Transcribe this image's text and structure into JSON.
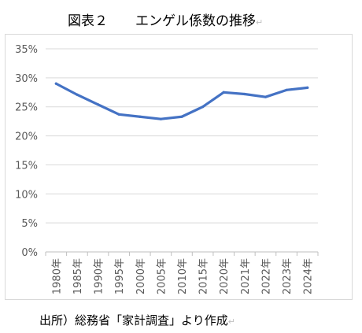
{
  "header": {
    "figure_label": "図表２",
    "title": "エンゲル係数の推移",
    "mark": "↵"
  },
  "footer": {
    "source": "出所）総務省「家計調査」より作成",
    "mark": "↵"
  },
  "chart_data": {
    "type": "line",
    "categories": [
      "1980年",
      "1985年",
      "1990年",
      "1995年",
      "2000年",
      "2005年",
      "2010年",
      "2015年",
      "2020年",
      "2021年",
      "2022年",
      "2023年",
      "2024年"
    ],
    "series": [
      {
        "values": [
          29.0,
          27.1,
          25.4,
          23.7,
          23.3,
          22.9,
          23.3,
          25.0,
          27.5,
          27.2,
          26.7,
          27.9,
          28.3
        ]
      }
    ],
    "y_ticks": [
      "0%",
      "5%",
      "10%",
      "15%",
      "20%",
      "25%",
      "30%",
      "35%"
    ],
    "y_tick_values": [
      0,
      5,
      10,
      15,
      20,
      25,
      30,
      35
    ],
    "ylim": [
      0,
      35
    ],
    "grid": true,
    "line_color": "#4472c4",
    "legend": "none"
  }
}
